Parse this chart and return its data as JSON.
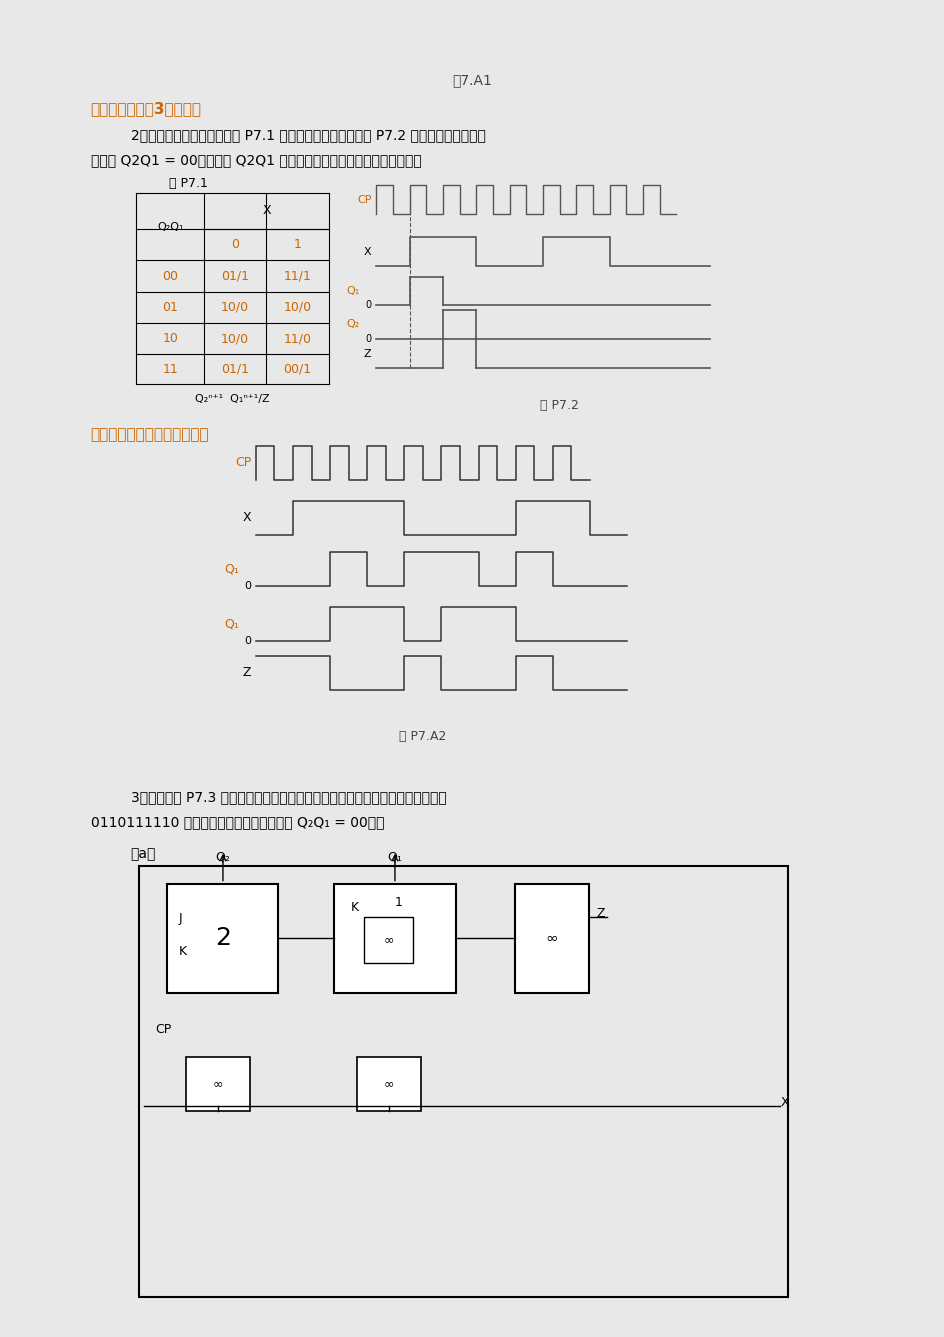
{
  "bg_color": "#e8e8e8",
  "page_bg": "#ffffff",
  "title_fig": "图7.A1",
  "line1": "本电路是同步模3计数器。",
  "problem2_text1": "2．已知电路状态转换表如表 P7.1 所示，输入信号波形如图 P7.2 所示，若电路的初始",
  "problem2_text2": "状态为 Q2Q1 = 00，试画出 Q2Q1 的波形图（设触发器的下降沿触发）。",
  "table_title": "表 P7.1",
  "table_header_x": "X",
  "table_header_0": "0",
  "table_header_1": "1",
  "table_header_q": "Q₂Q₁",
  "table_rows": [
    [
      "00",
      "01/1",
      "11/1"
    ],
    [
      "01",
      "10/0",
      "10/0"
    ],
    [
      "10",
      "10/0",
      "11/0"
    ],
    [
      "11",
      "01/1",
      "00/1"
    ]
  ],
  "table_footer": "Q₂ⁿ⁺¹  Q₁ⁿ⁺¹/Z",
  "fig_p72_label": "图 P7.2",
  "solution_text": "解：由状态转换表作出波形图",
  "fig_p7a2_label": "图 P7.A2",
  "problem3_text1": "3．试分析图 P7.3 所示电路，作出状态转换表及状态转换图，并作出输入信号为",
  "problem3_text2": "0110111110 相应的输出波形（设起始状态 Q₂Q₁ = 00）。",
  "problem3_sub": "（a）",
  "orange_color": "#cc6600",
  "blue_color": "#0055aa",
  "text_color": "#000000",
  "gray_color": "#555555"
}
